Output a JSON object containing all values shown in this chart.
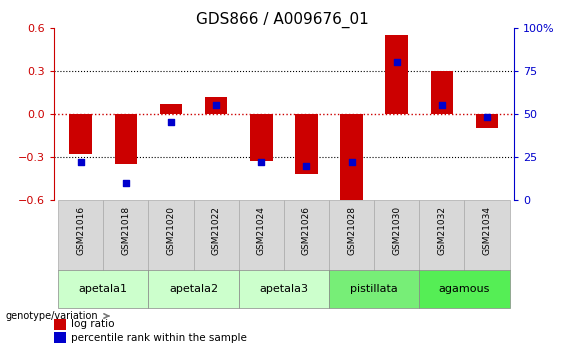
{
  "title": "GDS866 / A009676_01",
  "samples": [
    "GSM21016",
    "GSM21018",
    "GSM21020",
    "GSM21022",
    "GSM21024",
    "GSM21026",
    "GSM21028",
    "GSM21030",
    "GSM21032",
    "GSM21034"
  ],
  "log_ratio": [
    -0.28,
    -0.35,
    0.07,
    0.12,
    -0.33,
    -0.42,
    -0.62,
    0.55,
    0.3,
    -0.1
  ],
  "percentile_rank": [
    22,
    10,
    45,
    55,
    22,
    20,
    22,
    80,
    55,
    48
  ],
  "ylim_left": [
    -0.6,
    0.6
  ],
  "ylim_right": [
    0,
    100
  ],
  "yticks_left": [
    -0.6,
    -0.3,
    0,
    0.3,
    0.6
  ],
  "yticks_right": [
    0,
    25,
    50,
    75,
    100
  ],
  "ytick_labels_right": [
    "0",
    "25",
    "50",
    "75",
    "100%"
  ],
  "groups": [
    {
      "label": "apetala1",
      "samples": [
        0,
        1
      ],
      "color": "#ccffcc"
    },
    {
      "label": "apetala2",
      "samples": [
        2,
        3
      ],
      "color": "#ccffcc"
    },
    {
      "label": "apetala3",
      "samples": [
        4,
        5
      ],
      "color": "#ccffcc"
    },
    {
      "label": "pistillata",
      "samples": [
        6,
        7
      ],
      "color": "#77ee77"
    },
    {
      "label": "agamous",
      "samples": [
        8,
        9
      ],
      "color": "#55ee55"
    }
  ],
  "bar_color": "#cc0000",
  "dot_color": "#0000cc",
  "grid_color": "#000000",
  "zero_line_color": "#cc0000",
  "bg_color": "#ffffff",
  "title_fontsize": 11,
  "axis_fontsize": 8,
  "bar_width": 0.5,
  "dot_size": 22,
  "sample_box_color": "#d8d8d8",
  "sample_box_edge": "#aaaaaa"
}
